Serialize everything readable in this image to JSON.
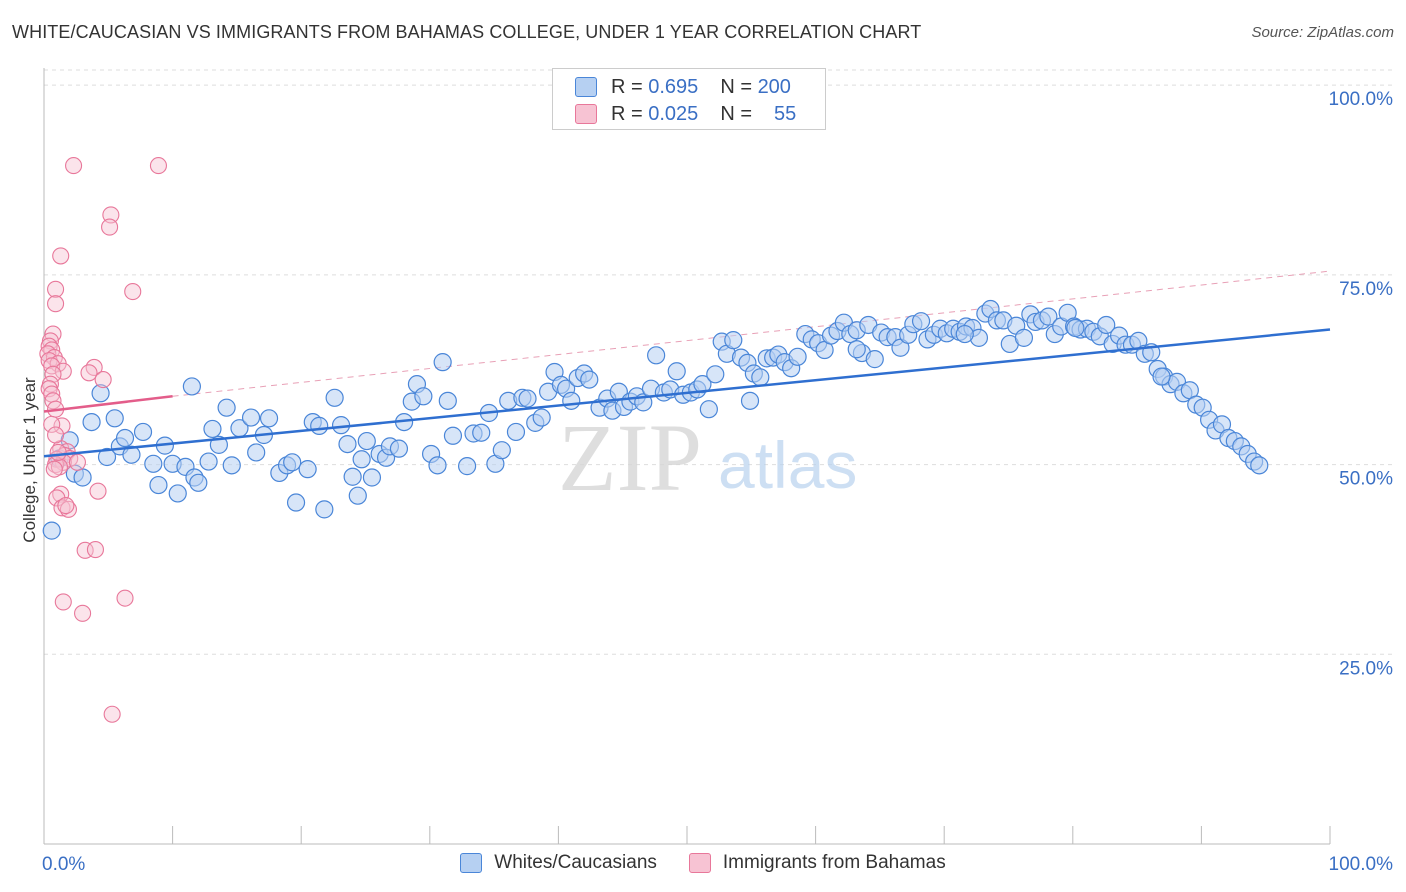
{
  "header": {
    "title": "WHITE/CAUCASIAN VS IMMIGRANTS FROM BAHAMAS COLLEGE, UNDER 1 YEAR CORRELATION CHART",
    "source": "Source: ZipAtlas.com"
  },
  "colors": {
    "blue": "#4a86d8",
    "blue_fill": "#b6d0f2",
    "pink": "#e8779a",
    "pink_fill": "#f7c3d3",
    "label_blue": "#3a6fc4"
  },
  "legend": {
    "rows": [
      {
        "r_label": "R =",
        "r_value": "0.695",
        "n_label": "N =",
        "n_value": "200"
      },
      {
        "r_label": "R =",
        "r_value": "0.025",
        "n_label": "N =",
        "n_value": "55"
      }
    ]
  },
  "chart_data": {
    "type": "scatter",
    "title": "WHITE/CAUCASIAN VS IMMIGRANTS FROM BAHAMAS COLLEGE, UNDER 1 YEAR CORRELATION CHART",
    "xlabel": "",
    "ylabel": "College, Under 1 year",
    "xlim": [
      0,
      100
    ],
    "ylim": [
      0,
      102
    ],
    "x_tick_labels": [
      "0.0%",
      "100.0%"
    ],
    "y_ticks": [
      25,
      50,
      75,
      100
    ],
    "y_tick_labels": [
      "25.0%",
      "50.0%",
      "75.0%",
      "100.0%"
    ],
    "grid": true,
    "legend_position": "bottom",
    "watermark": "ZIPatlas",
    "series": [
      {
        "name": "Whites/Caucasians",
        "color": "#4a86d8",
        "trend": {
          "x": [
            0,
            100
          ],
          "y": [
            51.1,
            67.8
          ]
        },
        "dashed_trend": {
          "x": [
            10,
            100
          ],
          "y": [
            59.0,
            75.5
          ]
        },
        "points": [
          [
            0.6,
            41.3
          ],
          [
            1.2,
            50.8
          ],
          [
            2.0,
            53.2
          ],
          [
            2.4,
            48.8
          ],
          [
            3.0,
            48.3
          ],
          [
            3.7,
            55.6
          ],
          [
            4.4,
            59.4
          ],
          [
            4.9,
            51.0
          ],
          [
            5.5,
            56.1
          ],
          [
            5.9,
            52.4
          ],
          [
            6.3,
            53.5
          ],
          [
            6.8,
            51.3
          ],
          [
            7.7,
            54.3
          ],
          [
            8.5,
            50.1
          ],
          [
            8.9,
            47.3
          ],
          [
            9.4,
            52.5
          ],
          [
            10.0,
            50.1
          ],
          [
            10.4,
            46.2
          ],
          [
            11.0,
            49.7
          ],
          [
            11.5,
            60.3
          ],
          [
            11.7,
            48.3
          ],
          [
            12.0,
            47.6
          ],
          [
            12.8,
            50.4
          ],
          [
            13.1,
            54.7
          ],
          [
            13.6,
            52.6
          ],
          [
            14.2,
            57.5
          ],
          [
            14.6,
            49.9
          ],
          [
            15.2,
            54.8
          ],
          [
            16.1,
            56.2
          ],
          [
            16.5,
            51.6
          ],
          [
            17.1,
            53.9
          ],
          [
            17.5,
            56.1
          ],
          [
            18.3,
            48.9
          ],
          [
            18.9,
            49.9
          ],
          [
            19.3,
            50.3
          ],
          [
            19.6,
            45.0
          ],
          [
            20.5,
            49.4
          ],
          [
            20.9,
            55.6
          ],
          [
            21.4,
            55.1
          ],
          [
            21.8,
            44.1
          ],
          [
            22.6,
            58.8
          ],
          [
            23.1,
            55.2
          ],
          [
            23.6,
            52.7
          ],
          [
            24.0,
            48.4
          ],
          [
            24.4,
            45.9
          ],
          [
            24.7,
            50.7
          ],
          [
            25.1,
            53.1
          ],
          [
            25.5,
            48.3
          ],
          [
            26.1,
            51.4
          ],
          [
            26.6,
            50.9
          ],
          [
            26.9,
            52.4
          ],
          [
            27.6,
            52.1
          ],
          [
            28.0,
            55.6
          ],
          [
            28.6,
            58.3
          ],
          [
            29.0,
            60.6
          ],
          [
            29.5,
            59.0
          ],
          [
            30.1,
            51.4
          ],
          [
            30.6,
            49.9
          ],
          [
            31.0,
            63.5
          ],
          [
            31.4,
            58.4
          ],
          [
            31.8,
            53.8
          ],
          [
            32.9,
            49.8
          ],
          [
            33.4,
            54.1
          ],
          [
            34.0,
            54.2
          ],
          [
            34.6,
            56.8
          ],
          [
            35.1,
            50.1
          ],
          [
            35.6,
            51.9
          ],
          [
            36.1,
            58.4
          ],
          [
            36.7,
            54.3
          ],
          [
            37.2,
            58.8
          ],
          [
            37.6,
            58.7
          ],
          [
            38.2,
            55.5
          ],
          [
            38.7,
            56.2
          ],
          [
            39.2,
            59.6
          ],
          [
            39.7,
            62.2
          ],
          [
            40.2,
            60.5
          ],
          [
            40.6,
            60.0
          ],
          [
            41.0,
            58.4
          ],
          [
            41.5,
            61.4
          ],
          [
            42.0,
            62.0
          ],
          [
            42.4,
            61.2
          ],
          [
            43.2,
            57.5
          ],
          [
            43.8,
            58.7
          ],
          [
            44.2,
            57.1
          ],
          [
            44.7,
            59.6
          ],
          [
            45.1,
            57.6
          ],
          [
            45.6,
            58.3
          ],
          [
            46.1,
            59.0
          ],
          [
            46.6,
            58.2
          ],
          [
            47.2,
            60.0
          ],
          [
            47.6,
            64.4
          ],
          [
            48.2,
            59.5
          ],
          [
            48.7,
            59.9
          ],
          [
            49.2,
            62.3
          ],
          [
            49.7,
            59.2
          ],
          [
            50.3,
            59.5
          ],
          [
            50.8,
            59.9
          ],
          [
            51.2,
            60.6
          ],
          [
            51.7,
            57.3
          ],
          [
            52.2,
            61.9
          ],
          [
            52.7,
            66.2
          ],
          [
            53.1,
            64.6
          ],
          [
            53.6,
            66.4
          ],
          [
            54.2,
            64.1
          ],
          [
            54.7,
            63.4
          ],
          [
            55.2,
            62.0
          ],
          [
            55.7,
            61.5
          ],
          [
            56.2,
            64.0
          ],
          [
            56.7,
            64.1
          ],
          [
            57.1,
            64.5
          ],
          [
            57.6,
            63.5
          ],
          [
            58.1,
            62.7
          ],
          [
            58.6,
            64.2
          ],
          [
            59.2,
            67.2
          ],
          [
            59.7,
            66.5
          ],
          [
            60.2,
            66.0
          ],
          [
            60.7,
            65.1
          ],
          [
            61.2,
            67.0
          ],
          [
            61.7,
            67.6
          ],
          [
            62.2,
            68.7
          ],
          [
            62.7,
            67.2
          ],
          [
            63.2,
            67.7
          ],
          [
            63.6,
            64.7
          ],
          [
            64.1,
            68.4
          ],
          [
            64.6,
            63.9
          ],
          [
            65.1,
            67.4
          ],
          [
            65.6,
            66.8
          ],
          [
            66.2,
            66.8
          ],
          [
            66.6,
            65.4
          ],
          [
            67.2,
            67.1
          ],
          [
            67.6,
            68.5
          ],
          [
            68.2,
            68.9
          ],
          [
            68.7,
            66.5
          ],
          [
            69.2,
            67.1
          ],
          [
            69.7,
            67.9
          ],
          [
            70.2,
            67.3
          ],
          [
            70.7,
            67.9
          ],
          [
            71.2,
            67.5
          ],
          [
            71.7,
            68.2
          ],
          [
            72.2,
            68.0
          ],
          [
            72.7,
            66.7
          ],
          [
            73.2,
            69.9
          ],
          [
            73.6,
            70.5
          ],
          [
            74.1,
            69.0
          ],
          [
            74.6,
            69.0
          ],
          [
            75.1,
            65.9
          ],
          [
            75.6,
            68.3
          ],
          [
            76.2,
            66.7
          ],
          [
            76.7,
            69.8
          ],
          [
            77.1,
            68.8
          ],
          [
            77.6,
            69.0
          ],
          [
            78.1,
            69.5
          ],
          [
            78.6,
            67.2
          ],
          [
            79.1,
            68.2
          ],
          [
            79.6,
            70.0
          ],
          [
            80.1,
            68.2
          ],
          [
            80.6,
            67.8
          ],
          [
            81.1,
            67.9
          ],
          [
            81.6,
            67.5
          ],
          [
            82.1,
            66.9
          ],
          [
            82.6,
            68.4
          ],
          [
            83.1,
            65.9
          ],
          [
            83.6,
            67.0
          ],
          [
            84.1,
            65.8
          ],
          [
            84.6,
            65.8
          ],
          [
            85.1,
            66.3
          ],
          [
            85.6,
            64.6
          ],
          [
            86.1,
            64.8
          ],
          [
            86.6,
            62.6
          ],
          [
            87.1,
            61.6
          ],
          [
            87.6,
            60.6
          ],
          [
            88.1,
            60.9
          ],
          [
            88.6,
            59.4
          ],
          [
            89.1,
            59.8
          ],
          [
            89.6,
            57.9
          ],
          [
            90.1,
            57.5
          ],
          [
            90.6,
            55.9
          ],
          [
            91.1,
            54.5
          ],
          [
            91.6,
            55.3
          ],
          [
            92.1,
            53.5
          ],
          [
            92.6,
            53.1
          ],
          [
            93.1,
            52.4
          ],
          [
            93.6,
            51.4
          ],
          [
            94.1,
            50.4
          ],
          [
            94.5,
            49.9
          ],
          [
            54.9,
            58.4
          ],
          [
            63.2,
            65.2
          ],
          [
            71.6,
            67.2
          ],
          [
            80.2,
            68.0
          ],
          [
            86.9,
            61.6
          ]
        ]
      },
      {
        "name": "Immigrants from Bahamas",
        "color": "#e8779a",
        "trend": {
          "x": [
            0,
            10
          ],
          "y": [
            57.0,
            59.0
          ]
        },
        "points": [
          [
            2.3,
            89.4
          ],
          [
            8.9,
            89.4
          ],
          [
            5.2,
            82.9
          ],
          [
            5.1,
            81.3
          ],
          [
            1.3,
            77.5
          ],
          [
            0.9,
            73.1
          ],
          [
            6.9,
            72.8
          ],
          [
            0.9,
            71.2
          ],
          [
            0.7,
            67.2
          ],
          [
            0.5,
            66.3
          ],
          [
            0.4,
            65.6
          ],
          [
            0.6,
            65.1
          ],
          [
            0.3,
            64.6
          ],
          [
            0.8,
            64.1
          ],
          [
            0.4,
            63.7
          ],
          [
            1.1,
            63.3
          ],
          [
            0.6,
            63.0
          ],
          [
            3.9,
            62.8
          ],
          [
            1.5,
            62.3
          ],
          [
            3.5,
            62.1
          ],
          [
            0.7,
            61.9
          ],
          [
            4.6,
            61.2
          ],
          [
            0.5,
            60.6
          ],
          [
            0.4,
            60.0
          ],
          [
            0.6,
            59.3
          ],
          [
            0.7,
            58.4
          ],
          [
            0.9,
            57.3
          ],
          [
            1.4,
            55.1
          ],
          [
            0.6,
            55.3
          ],
          [
            1.3,
            52.1
          ],
          [
            1.8,
            51.7
          ],
          [
            1.6,
            51.2
          ],
          [
            2.0,
            50.8
          ],
          [
            1.0,
            50.7
          ],
          [
            1.5,
            50.3
          ],
          [
            0.9,
            50.0
          ],
          [
            1.2,
            49.7
          ],
          [
            0.8,
            49.4
          ],
          [
            1.3,
            46.1
          ],
          [
            4.2,
            46.5
          ],
          [
            1.0,
            45.6
          ],
          [
            1.4,
            44.3
          ],
          [
            1.9,
            44.1
          ],
          [
            1.7,
            44.6
          ],
          [
            3.2,
            38.7
          ],
          [
            4.0,
            38.8
          ],
          [
            1.5,
            31.9
          ],
          [
            6.3,
            32.4
          ],
          [
            3.0,
            30.4
          ],
          [
            5.3,
            17.1
          ],
          [
            1.1,
            51.6
          ],
          [
            0.9,
            53.9
          ],
          [
            2.6,
            50.3
          ]
        ]
      }
    ]
  },
  "bottom_legend": {
    "items": [
      "Whites/Caucasians",
      "Immigrants from Bahamas"
    ]
  }
}
